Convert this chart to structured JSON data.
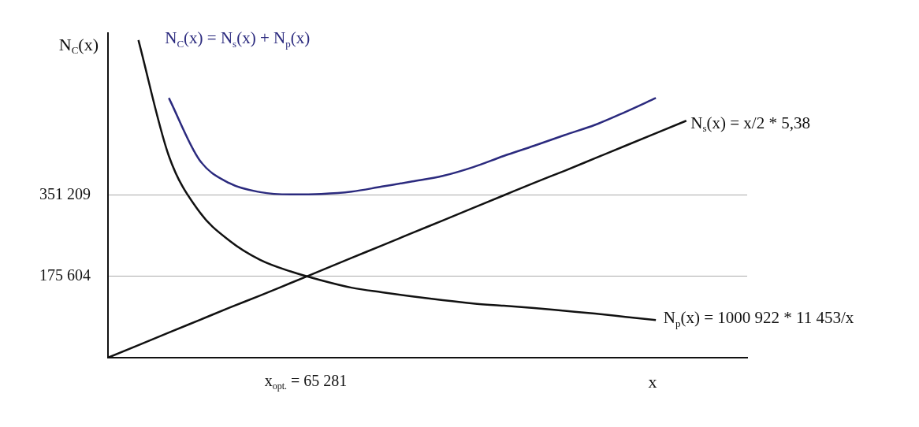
{
  "chart_data": {
    "type": "line",
    "ylabel": "N$_{C}$(x)",
    "xlabel": "x",
    "categories": [
      null,
      null,
      null,
      null,
      null,
      null,
      null,
      null,
      null,
      null,
      null,
      null,
      null,
      null,
      null,
      null,
      null,
      null,
      null,
      null,
      null,
      null
    ],
    "ylim": [
      0,
      700000
    ],
    "yticks": [
      {
        "value": 175604,
        "label": "175 604"
      },
      {
        "value": 351209,
        "label": "351 209"
      }
    ],
    "annotations": [
      "x$_{opt.}$ = 65 281"
    ],
    "grid": "y",
    "marker": "none",
    "line_style": "solid",
    "series": [
      {
        "name": "N$_{C}$(x) = N$_{s}$(x) + N$_{p}$(x)",
        "color": "#2b2a7e",
        "values": [
          null,
          null,
          560000,
          427000,
          376000,
          357000,
          352000,
          353000,
          358000,
          369000,
          380000,
          392000,
          411000,
          435000,
          457000,
          480000,
          502000,
          530000,
          560000,
          null,
          null,
          null
        ]
      },
      {
        "name": "N$_{s}$(x) = x/2 * 5,38",
        "color": "#111111",
        "values": [
          0,
          27000,
          54000,
          81000,
          108000,
          134000,
          161000,
          188000,
          215000,
          242000,
          269000,
          296000,
          323000,
          350000,
          377000,
          403000,
          430000,
          457000,
          484000,
          511000,
          null,
          null
        ]
      },
      {
        "name": "N$_{p}$(x) = 1000 922 * 11 453/x",
        "color": "#111111",
        "values": [
          null,
          685000,
          435000,
          315000,
          252000,
          211000,
          186000,
          167000,
          151000,
          141000,
          132000,
          124000,
          117000,
          112000,
          107000,
          101000,
          95000,
          88000,
          81000,
          null,
          null,
          null
        ]
      }
    ]
  }
}
